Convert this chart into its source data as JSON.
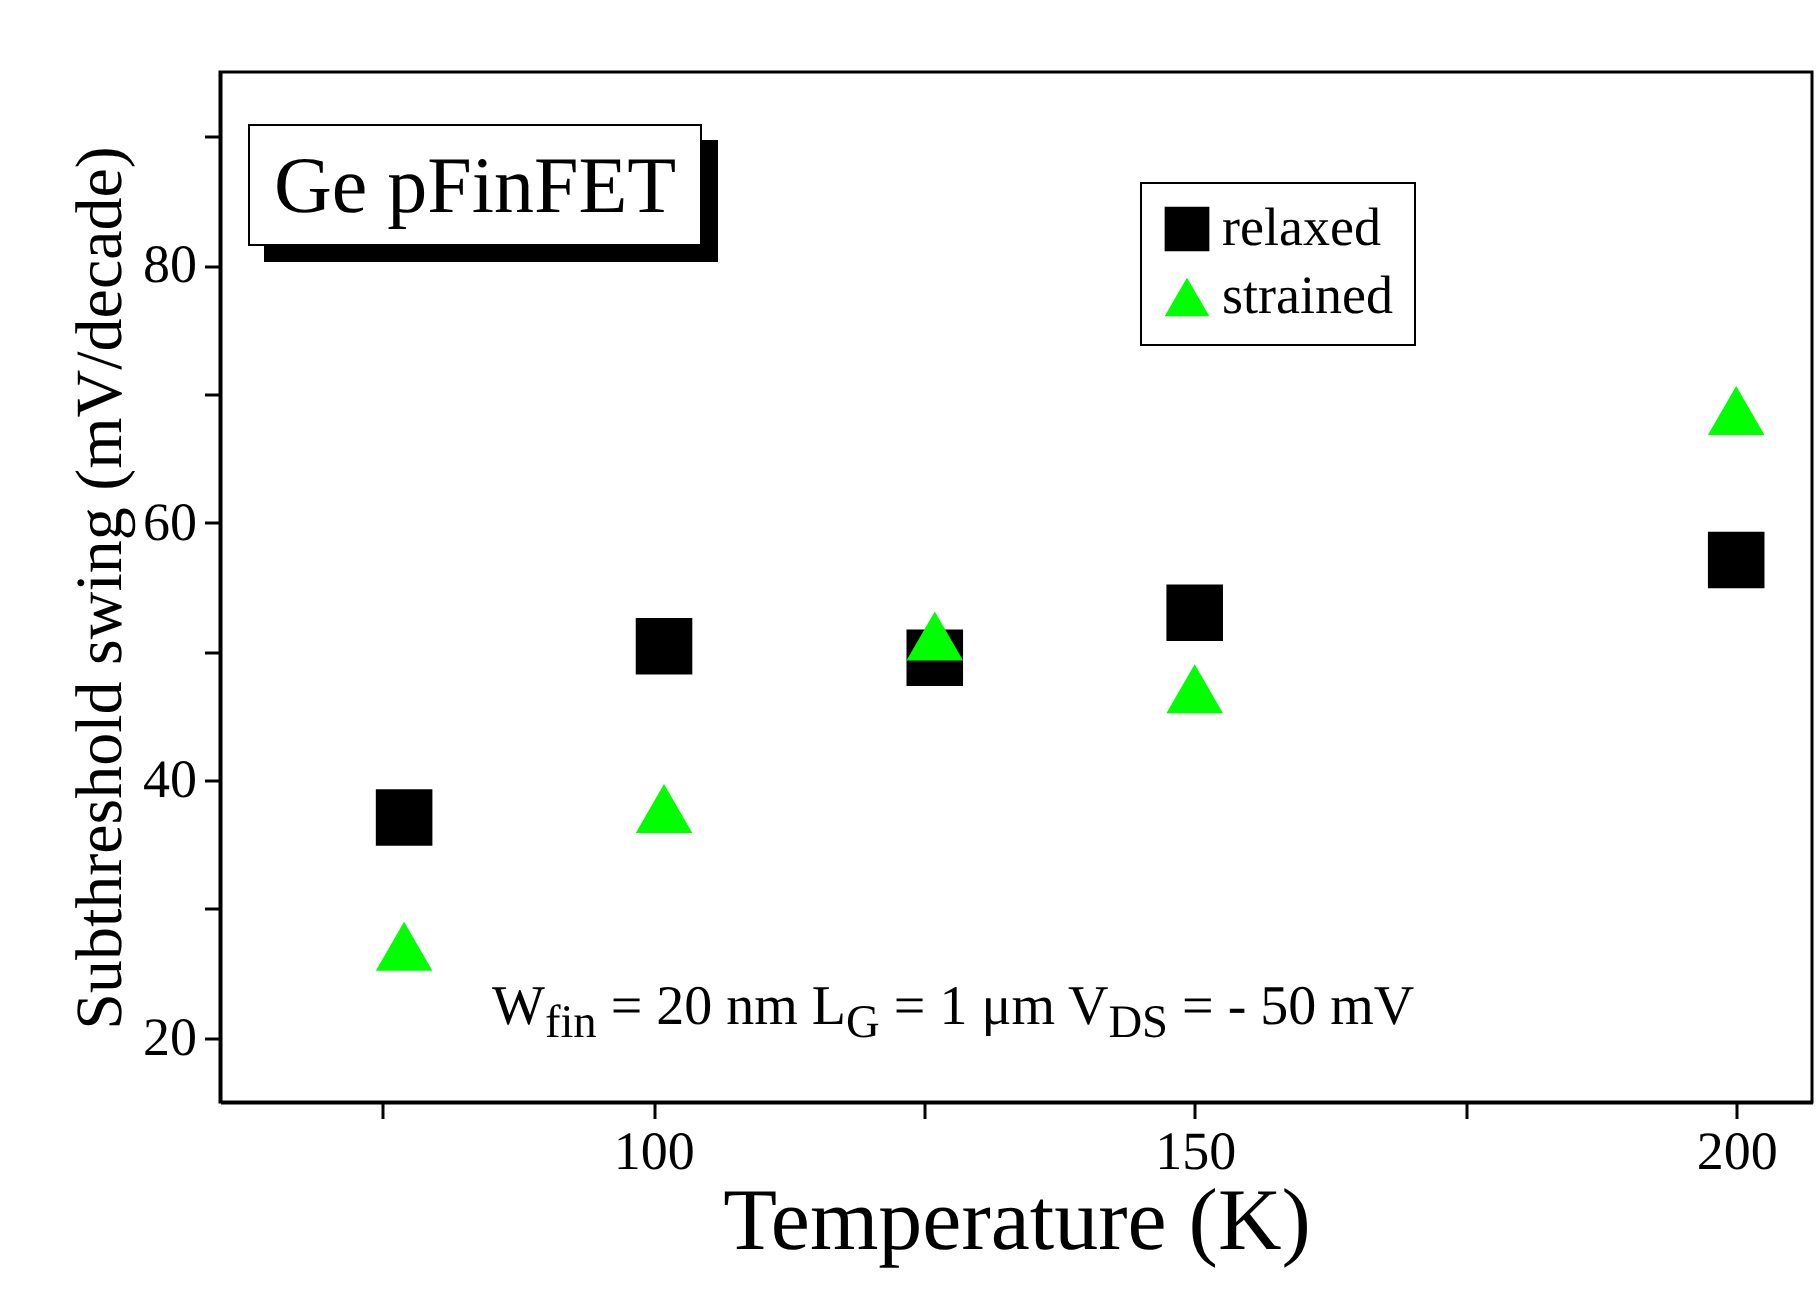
{
  "chart_data": {
    "type": "scatter",
    "xlabel": "Temperature (K)",
    "ylabel": "Subthreshold swing (mV/decade)",
    "annotations": [
      "Ge pFinFET",
      "W$_{fin}$ = 20 nm   L$_{G}$ = 1 μm   V$_{DS}$ = - 50 mV"
    ],
    "x": [
      77,
      101,
      126,
      150,
      200
    ],
    "series": [
      {
        "name": "relaxed",
        "color": "#000000",
        "marker": "square",
        "values": [
          37.1,
          50.4,
          49.5,
          53.0,
          57.1
        ]
      },
      {
        "name": "strained",
        "color": "#00ff00",
        "marker": "triangle",
        "values": [
          27.1,
          37.8,
          51.2,
          47.1,
          68.7
        ]
      }
    ],
    "xlim": [
      60,
      207
    ],
    "xticks": [
      {
        "value": 75,
        "label": null
      },
      100,
      {
        "value": 125,
        "label": null
      },
      150,
      {
        "value": 175,
        "label": null
      },
      200
    ],
    "ylim": [
      15,
      95
    ],
    "yticks": [
      20,
      {
        "value": 30,
        "label": null
      },
      40,
      {
        "value": 50,
        "label": null
      },
      60,
      {
        "value": 70,
        "label": null
      },
      80,
      {
        "value": 90,
        "label": null
      }
    ],
    "grid": false,
    "legend": "top right"
  }
}
